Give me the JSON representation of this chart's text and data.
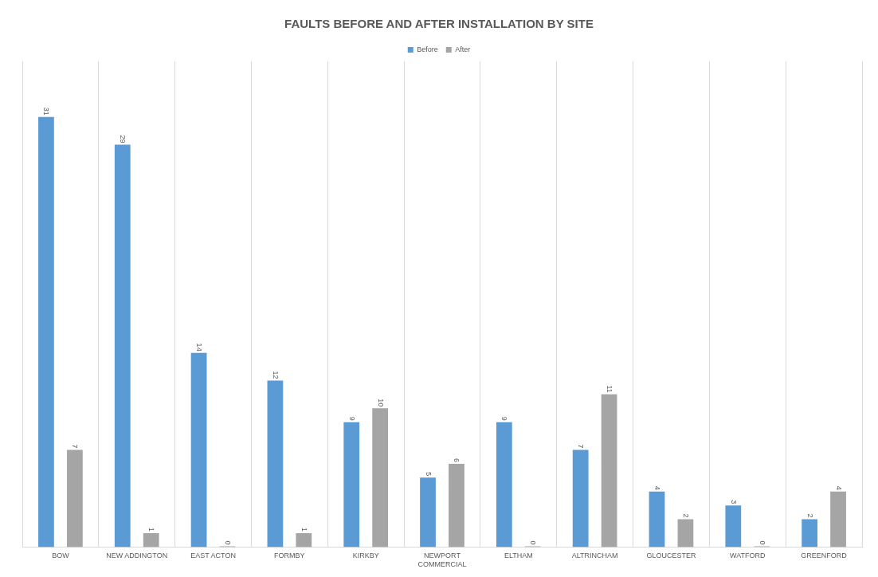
{
  "chart_data": {
    "type": "bar",
    "title": "FAULTS BEFORE AND AFTER INSTALLATION BY SITE",
    "categories": [
      "BOW",
      "NEW ADDINGTON",
      "EAST ACTON",
      "FORMBY",
      "KIRKBY",
      "NEWPORT COMMERCIAL",
      "ELTHAM",
      "ALTRINCHAM",
      "GLOUCESTER",
      "WATFORD",
      "GREENFORD"
    ],
    "series": [
      {
        "name": "Before",
        "color": "#5b9bd5",
        "values": [
          31,
          29,
          14,
          12,
          9,
          5,
          9,
          7,
          4,
          3,
          2
        ]
      },
      {
        "name": "After",
        "color": "#a5a5a5",
        "values": [
          7,
          1,
          0,
          1,
          10,
          6,
          0,
          11,
          2,
          0,
          4
        ]
      }
    ],
    "data_labels": true,
    "grid": "x",
    "legend": "top"
  }
}
